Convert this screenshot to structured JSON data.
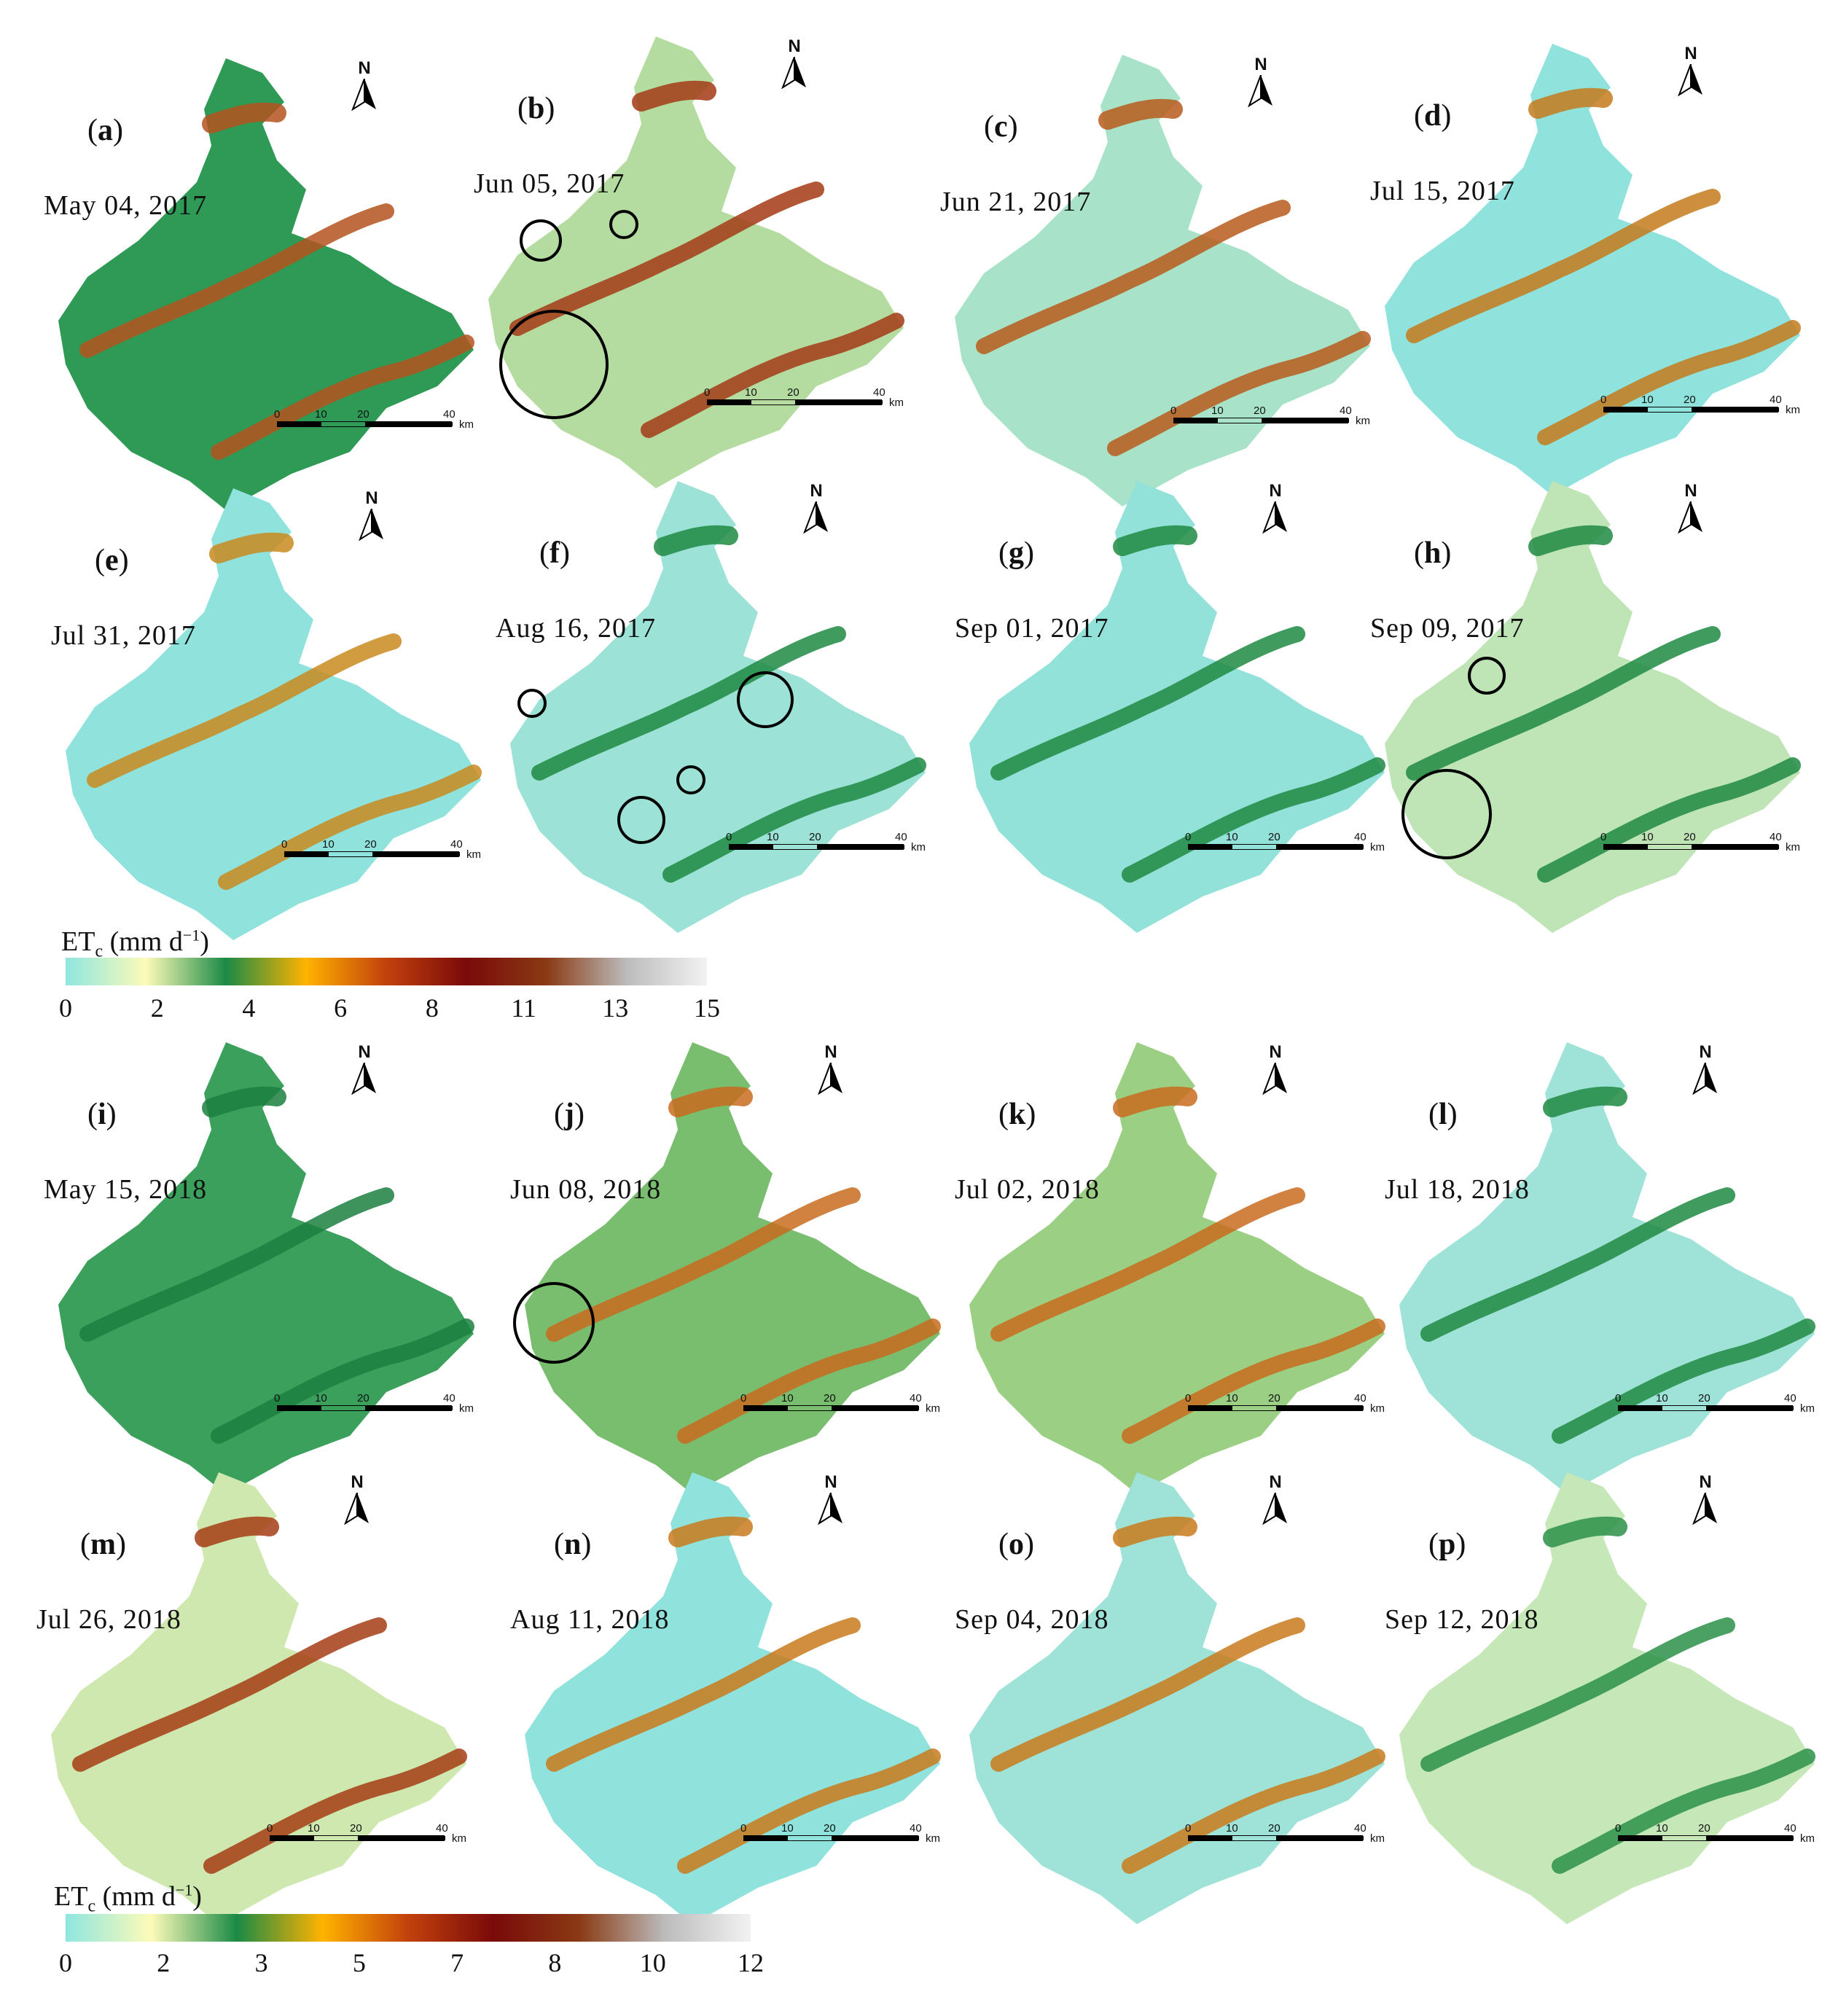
{
  "panels_2017": [
    {
      "id": "a",
      "date": "May 04, 2017",
      "fill": "#2e9a55",
      "hot": "#b4541e"
    },
    {
      "id": "b",
      "date": "Jun 05, 2017",
      "fill": "#b5dca0",
      "hot": "#a33a15"
    },
    {
      "id": "c",
      "date": "Jun 21, 2017",
      "fill": "#a8e3c9",
      "hot": "#b85a1b"
    },
    {
      "id": "d",
      "date": "Jul 15, 2017",
      "fill": "#8fe3dc",
      "hot": "#c47a1c"
    },
    {
      "id": "e",
      "date": "Jul 31, 2017",
      "fill": "#8fe3dc",
      "hot": "#c98a1e"
    },
    {
      "id": "f",
      "date": "Aug 16, 2017",
      "fill": "#9ce2d6",
      "hot": "#1f8a42"
    },
    {
      "id": "g",
      "date": "Sep 01, 2017",
      "fill": "#93e2da",
      "hot": "#1f8a42"
    },
    {
      "id": "h",
      "date": "Sep 09, 2017",
      "fill": "#bfe4b5",
      "hot": "#1f8a42"
    }
  ],
  "panels_2018": [
    {
      "id": "i",
      "date": "May 15, 2018",
      "fill": "#3aa05c",
      "hot": "#1c7f3f"
    },
    {
      "id": "j",
      "date": "Jun 08, 2018",
      "fill": "#79be6e",
      "hot": "#c96b1e"
    },
    {
      "id": "k",
      "date": "Jul 02, 2018",
      "fill": "#9bcf83",
      "hot": "#c96b1e"
    },
    {
      "id": "l",
      "date": "Jul 18, 2018",
      "fill": "#9fe3d8",
      "hot": "#1f8a42"
    },
    {
      "id": "m",
      "date": "Jul 26, 2018",
      "fill": "#cfe8b0",
      "hot": "#a53c14"
    },
    {
      "id": "n",
      "date": "Aug 11, 2018",
      "fill": "#8fe3dc",
      "hot": "#c97a1c"
    },
    {
      "id": "o",
      "date": "Sep 04, 2018",
      "fill": "#9fe3d8",
      "hot": "#c97a1c"
    },
    {
      "id": "p",
      "date": "Sep 12, 2018",
      "fill": "#c6e8b8",
      "hot": "#2a9148"
    }
  ],
  "north_letter": "N",
  "scale": {
    "t0": "0",
    "t1": "10",
    "t2": "20",
    "t3": "40",
    "unit": "km"
  },
  "legend_2017": {
    "title_main": "ET",
    "title_sub": "c",
    "title_unit": "(mm d",
    "title_exp": "−1",
    "title_close": ")",
    "ticks": [
      "0",
      "2",
      "4",
      "6",
      "8",
      "11",
      "13",
      "15"
    ]
  },
  "legend_2018": {
    "title_main": "ET",
    "title_sub": "c",
    "title_unit": "(mm d",
    "title_exp": "−1",
    "title_close": ")",
    "ticks": [
      "0",
      "2",
      "3",
      "5",
      "7",
      "8",
      "10",
      "12"
    ]
  },
  "colors": {
    "ramp": [
      "#8ee6e0",
      "#fdfbb8",
      "#1a8a46",
      "#ffb300",
      "#c2410c",
      "#7a0a0a",
      "#8a3a14",
      "#bcbcbc",
      "#f2f2f2"
    ],
    "circle": "#000000"
  }
}
